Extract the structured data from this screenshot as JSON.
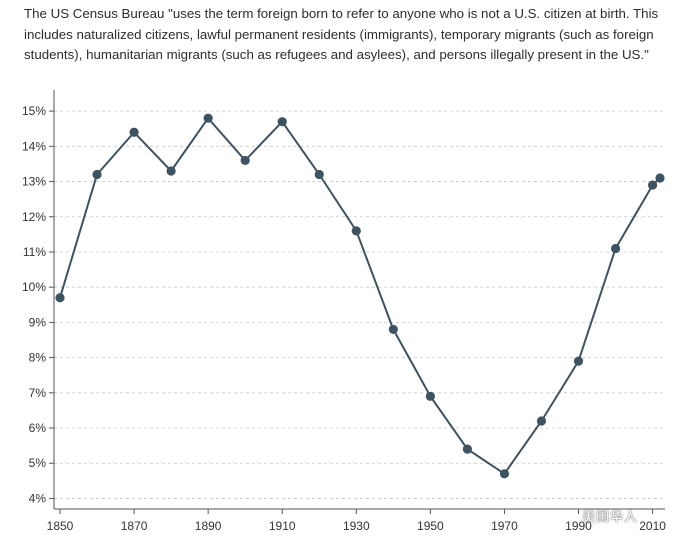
{
  "caption": "The US Census Bureau \"uses the term foreign born to refer to anyone who is not a U.S. citizen at birth. This includes naturalized citizens, lawful permanent residents (immigrants), temporary migrants (such as foreign students), humanitarian migrants (such as refugees and asylees), and persons illegally present in the US.\"",
  "watermark": "美国华人",
  "chart_data": {
    "type": "line",
    "title": "",
    "xlabel": "",
    "ylabel": "",
    "x": [
      1850,
      1860,
      1870,
      1880,
      1890,
      1900,
      1910,
      1920,
      1930,
      1940,
      1950,
      1960,
      1970,
      1980,
      1990,
      2000,
      2010,
      2012
    ],
    "series": [
      {
        "values": [
          9.7,
          13.2,
          14.4,
          13.3,
          14.8,
          13.6,
          14.7,
          13.2,
          11.6,
          8.8,
          6.9,
          5.4,
          4.7,
          6.2,
          7.9,
          11.1,
          12.9,
          13.1
        ]
      }
    ],
    "xticks": [
      1850,
      1870,
      1890,
      1910,
      1930,
      1950,
      1970,
      1990,
      2010
    ],
    "xtick_labels": [
      "1850",
      "1870",
      "1890",
      "1910",
      "1930",
      "1950",
      "1970",
      "1990",
      "2010"
    ],
    "yticks": [
      4,
      5,
      6,
      7,
      8,
      9,
      10,
      11,
      12,
      13,
      14,
      15
    ],
    "ytick_labels": [
      "4%",
      "5%",
      "6%",
      "7%",
      "8%",
      "9%",
      "10%",
      "11%",
      "12%",
      "13%",
      "14%",
      "15%"
    ],
    "xlim": [
      1850,
      2012
    ],
    "ylim": [
      3.7,
      15.6
    ],
    "grid": true,
    "color": "#3e5361"
  }
}
